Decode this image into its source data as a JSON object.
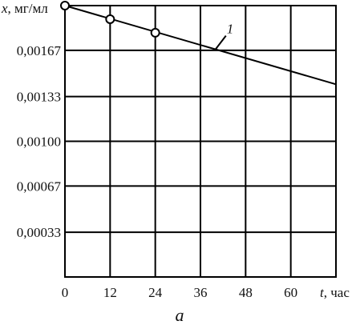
{
  "chart_data": {
    "type": "line",
    "x_label_var": "t",
    "x_label_unit": ", час",
    "y_label_var": "x",
    "y_label_unit": ", мг/мл",
    "xlim": [
      0,
      72
    ],
    "ylim": [
      0,
      0.002
    ],
    "x_ticks": [
      "0",
      "12",
      "24",
      "36",
      "48",
      "60"
    ],
    "x_tick_values": [
      0,
      12,
      24,
      36,
      48,
      60
    ],
    "y_ticks": [
      "0,00033",
      "0,00067",
      "0,00100",
      "0,00133",
      "0,00167"
    ],
    "y_tick_values": [
      0.00033,
      0.00067,
      0.001,
      0.00133,
      0.00167
    ],
    "grid": true,
    "series": [
      {
        "label": "1",
        "line": {
          "x": [
            0,
            72
          ],
          "y": [
            0.002,
            0.00142
          ]
        },
        "markers": {
          "x": [
            0,
            12,
            24
          ],
          "y": [
            0.002,
            0.0019,
            0.0018
          ]
        }
      }
    ],
    "caption": "а"
  }
}
